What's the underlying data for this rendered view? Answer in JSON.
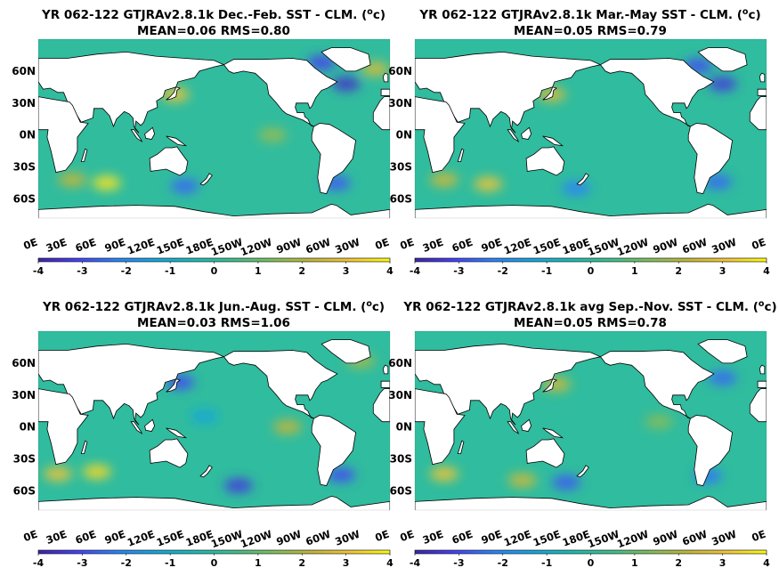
{
  "colors": {
    "colormap": [
      "#3e26a8",
      "#4743f2",
      "#2c83f5",
      "#19a4dc",
      "#1fb9b3",
      "#3ebe8e",
      "#7fbe5e",
      "#c3b63b",
      "#f2c638",
      "#f9fb0e"
    ],
    "ocean_mean": "#2db7b5",
    "land": "#ffffff",
    "coast": "#000000"
  },
  "chart_data": [
    {
      "type": "heatmap",
      "title": "YR 062-122 GTJRAv2.8.1k  Dec.-Feb. SST - CLM. (",
      "title_unit": "o",
      "title_close": "c)",
      "subtitle": "MEAN=0.06   RMS=0.80",
      "mean": 0.06,
      "rms": 0.8,
      "lat_labels": [
        "60N",
        "30N",
        "0N",
        "30S",
        "60S"
      ],
      "lon_labels": [
        "0E",
        "30E",
        "60E",
        "90E",
        "120E",
        "150E",
        "180E",
        "150W",
        "120W",
        "90W",
        "60W",
        "30W",
        "0E"
      ],
      "colorbar_ticks": [
        "-4",
        "-3",
        "-2",
        "-1",
        "0",
        "1",
        "2",
        "3",
        "4"
      ],
      "clim": [
        -4,
        4
      ],
      "anomalies": [
        {
          "lon": 140,
          "lat": 38,
          "value": 3.0
        },
        {
          "lon": 315,
          "lat": 48,
          "value": -3.6
        },
        {
          "lon": 345,
          "lat": 62,
          "value": 2.6
        },
        {
          "lon": 35,
          "lat": -42,
          "value": 2.2
        },
        {
          "lon": 70,
          "lat": -45,
          "value": 3.6
        },
        {
          "lon": 150,
          "lat": -48,
          "value": -2.6
        },
        {
          "lon": 305,
          "lat": -45,
          "value": -2.8
        },
        {
          "lon": 240,
          "lat": 0,
          "value": 1.6
        },
        {
          "lon": 290,
          "lat": 68,
          "value": -3.2
        }
      ]
    },
    {
      "type": "heatmap",
      "title": "YR 062-122 GTJRAv2.8.1k  Mar.-May SST - CLM. (",
      "title_unit": "o",
      "title_close": "c)",
      "subtitle": "MEAN=0.05   RMS=0.79",
      "mean": 0.05,
      "rms": 0.79,
      "lat_labels": [
        "60N",
        "30N",
        "0N",
        "30S",
        "60S"
      ],
      "lon_labels": [
        "0E",
        "30E",
        "60E",
        "90E",
        "120E",
        "150E",
        "180E",
        "150W",
        "120W",
        "90W",
        "60W",
        "30W",
        "0E"
      ],
      "colorbar_ticks": [
        "-4",
        "-3",
        "-2",
        "-1",
        "0",
        "1",
        "2",
        "3",
        "4"
      ],
      "clim": [
        -4,
        4
      ],
      "anomalies": [
        {
          "lon": 140,
          "lat": 38,
          "value": 2.6
        },
        {
          "lon": 315,
          "lat": 48,
          "value": -3.4
        },
        {
          "lon": 290,
          "lat": 65,
          "value": -3.0
        },
        {
          "lon": 30,
          "lat": -42,
          "value": 2.4
        },
        {
          "lon": 75,
          "lat": -46,
          "value": 3.0
        },
        {
          "lon": 165,
          "lat": -50,
          "value": -2.2
        },
        {
          "lon": 310,
          "lat": -44,
          "value": -2.6
        }
      ]
    },
    {
      "type": "heatmap",
      "title": "YR 062-122 GTJRAv2.8.1k Jun.-Aug. SST - CLM. (",
      "title_unit": "o",
      "title_close": "c)",
      "subtitle": "MEAN=0.03   RMS=1.06",
      "mean": 0.03,
      "rms": 1.06,
      "lat_labels": [
        "60N",
        "30N",
        "0N",
        "30S",
        "60S"
      ],
      "lon_labels": [
        "0E",
        "30E",
        "60E",
        "90E",
        "120E",
        "150E",
        "180E",
        "150W",
        "120W",
        "90W",
        "60W",
        "30W",
        "0E"
      ],
      "colorbar_ticks": [
        "-4",
        "-3",
        "-2",
        "-1",
        "0",
        "1",
        "2",
        "3",
        "4"
      ],
      "clim": [
        -4,
        4
      ],
      "anomalies": [
        {
          "lon": 145,
          "lat": 42,
          "value": -3.0
        },
        {
          "lon": 60,
          "lat": -42,
          "value": 3.4
        },
        {
          "lon": 20,
          "lat": -44,
          "value": 3.0
        },
        {
          "lon": 205,
          "lat": -55,
          "value": -3.4
        },
        {
          "lon": 310,
          "lat": -45,
          "value": -3.0
        },
        {
          "lon": 255,
          "lat": 0,
          "value": 2.2
        },
        {
          "lon": 170,
          "lat": 10,
          "value": -1.2
        },
        {
          "lon": 330,
          "lat": 62,
          "value": 1.8
        }
      ]
    },
    {
      "type": "heatmap",
      "title": "YR 062-122 GTJRAv2.8.1k avg Sep.-Nov. SST - CLM. (",
      "title_unit": "o",
      "title_close": "c)",
      "subtitle": "MEAN=0.05   RMS=0.78",
      "mean": 0.05,
      "rms": 0.78,
      "lat_labels": [
        "60N",
        "30N",
        "0N",
        "30S",
        "60S"
      ],
      "lon_labels": [
        "0E",
        "30E",
        "60E",
        "90E",
        "120E",
        "150E",
        "180E",
        "150W",
        "120W",
        "90W",
        "60W",
        "30W",
        "0E"
      ],
      "colorbar_ticks": [
        "-4",
        "-3",
        "-2",
        "-1",
        "0",
        "1",
        "2",
        "3",
        "4"
      ],
      "clim": [
        -4,
        4
      ],
      "anomalies": [
        {
          "lon": 145,
          "lat": 40,
          "value": 2.4
        },
        {
          "lon": 315,
          "lat": 46,
          "value": -2.6
        },
        {
          "lon": 30,
          "lat": -44,
          "value": 3.0
        },
        {
          "lon": 110,
          "lat": -50,
          "value": 2.4
        },
        {
          "lon": 155,
          "lat": -52,
          "value": -2.8
        },
        {
          "lon": 300,
          "lat": -46,
          "value": -2.4
        },
        {
          "lon": 250,
          "lat": 5,
          "value": 1.4
        }
      ]
    }
  ]
}
